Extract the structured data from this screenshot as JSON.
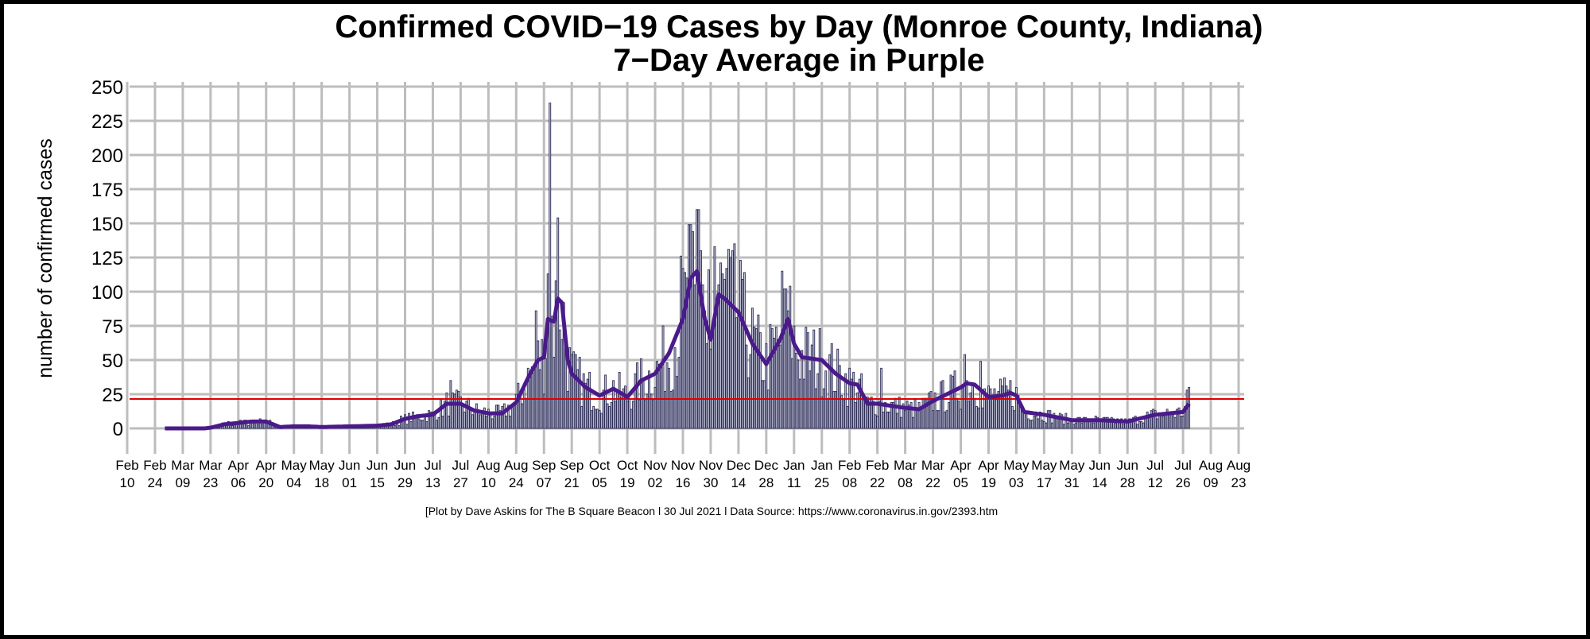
{
  "chart_data": {
    "type": "bar",
    "title": "Confirmed COVID−19 Cases by Day (Monroe County, Indiana)",
    "subtitle": "7−Day Average in Purple",
    "xlabel": "",
    "ylabel": "number of confirmed cases",
    "footer": "[Plot by Dave Askins for The B Square Beacon l 30 Jul 2021 l Data Source: https://www.coronavirus.in.gov/2393.htm",
    "ylim": [
      0,
      250
    ],
    "yticks": [
      0,
      25,
      50,
      75,
      100,
      125,
      150,
      175,
      200,
      225,
      250
    ],
    "xlim": [
      "2020-02-10",
      "2021-08-23"
    ],
    "xticks": [
      [
        "Feb",
        "10"
      ],
      [
        "Feb",
        "24"
      ],
      [
        "Mar",
        "09"
      ],
      [
        "Mar",
        "23"
      ],
      [
        "Apr",
        "06"
      ],
      [
        "Apr",
        "20"
      ],
      [
        "May",
        "04"
      ],
      [
        "May",
        "18"
      ],
      [
        "Jun",
        "01"
      ],
      [
        "Jun",
        "15"
      ],
      [
        "Jun",
        "29"
      ],
      [
        "Jul",
        "13"
      ],
      [
        "Jul",
        "27"
      ],
      [
        "Aug",
        "10"
      ],
      [
        "Aug",
        "24"
      ],
      [
        "Sep",
        "07"
      ],
      [
        "Sep",
        "21"
      ],
      [
        "Oct",
        "05"
      ],
      [
        "Oct",
        "19"
      ],
      [
        "Nov",
        "02"
      ],
      [
        "Nov",
        "16"
      ],
      [
        "Nov",
        "30"
      ],
      [
        "Dec",
        "14"
      ],
      [
        "Dec",
        "28"
      ],
      [
        "Jan",
        "11"
      ],
      [
        "Jan",
        "25"
      ],
      [
        "Feb",
        "08"
      ],
      [
        "Feb",
        "22"
      ],
      [
        "Mar",
        "08"
      ],
      [
        "Mar",
        "22"
      ],
      [
        "Apr",
        "05"
      ],
      [
        "Apr",
        "19"
      ],
      [
        "May",
        "03"
      ],
      [
        "May",
        "17"
      ],
      [
        "May",
        "31"
      ],
      [
        "Jun",
        "14"
      ],
      [
        "Jun",
        "28"
      ],
      [
        "Jul",
        "12"
      ],
      [
        "Jul",
        "26"
      ],
      [
        "Aug",
        "09"
      ],
      [
        "Aug",
        "23"
      ]
    ],
    "grid": true,
    "data_range": [
      "2020-02-29",
      "2021-07-29"
    ],
    "reference_line": {
      "value": 21.5,
      "color": "#e00000"
    },
    "colors": {
      "bar_fill": "#c8c8dc",
      "bar_stroke": "#2c2c55",
      "average_line": "#4a1a8a",
      "grid": "#bdbdbd"
    },
    "seven_day_average": [
      [
        "2020-02-29",
        0
      ],
      [
        "2020-03-09",
        0
      ],
      [
        "2020-03-20",
        0
      ],
      [
        "2020-03-23",
        0.5
      ],
      [
        "2020-03-30",
        3
      ],
      [
        "2020-04-06",
        4
      ],
      [
        "2020-04-13",
        5
      ],
      [
        "2020-04-20",
        5
      ],
      [
        "2020-04-27",
        1
      ],
      [
        "2020-05-04",
        1.5
      ],
      [
        "2020-05-11",
        1.5
      ],
      [
        "2020-05-18",
        1
      ],
      [
        "2020-06-01",
        1.5
      ],
      [
        "2020-06-15",
        2
      ],
      [
        "2020-06-22",
        3
      ],
      [
        "2020-06-29",
        7
      ],
      [
        "2020-07-06",
        9
      ],
      [
        "2020-07-13",
        10
      ],
      [
        "2020-07-20",
        18
      ],
      [
        "2020-07-27",
        18
      ],
      [
        "2020-08-03",
        13
      ],
      [
        "2020-08-10",
        11
      ],
      [
        "2020-08-17",
        11
      ],
      [
        "2020-08-24",
        19
      ],
      [
        "2020-08-31",
        40
      ],
      [
        "2020-09-04",
        50
      ],
      [
        "2020-09-07",
        52
      ],
      [
        "2020-09-09",
        80
      ],
      [
        "2020-09-12",
        78
      ],
      [
        "2020-09-14",
        95
      ],
      [
        "2020-09-16",
        92
      ],
      [
        "2020-09-19",
        50
      ],
      [
        "2020-09-21",
        40
      ],
      [
        "2020-09-28",
        30
      ],
      [
        "2020-10-05",
        24
      ],
      [
        "2020-10-12",
        29
      ],
      [
        "2020-10-19",
        23
      ],
      [
        "2020-10-26",
        35
      ],
      [
        "2020-11-02",
        40
      ],
      [
        "2020-11-09",
        55
      ],
      [
        "2020-11-16",
        80
      ],
      [
        "2020-11-20",
        110
      ],
      [
        "2020-11-23",
        115
      ],
      [
        "2020-11-27",
        80
      ],
      [
        "2020-11-30",
        65
      ],
      [
        "2020-12-04",
        98
      ],
      [
        "2020-12-07",
        95
      ],
      [
        "2020-12-14",
        85
      ],
      [
        "2020-12-21",
        62
      ],
      [
        "2020-12-28",
        47
      ],
      [
        "2021-01-04",
        65
      ],
      [
        "2021-01-08",
        80
      ],
      [
        "2021-01-11",
        62
      ],
      [
        "2021-01-15",
        52
      ],
      [
        "2021-01-25",
        50
      ],
      [
        "2021-02-01",
        40
      ],
      [
        "2021-02-08",
        33
      ],
      [
        "2021-02-12",
        32
      ],
      [
        "2021-02-17",
        18
      ],
      [
        "2021-02-22",
        18
      ],
      [
        "2021-03-08",
        15
      ],
      [
        "2021-03-15",
        14
      ],
      [
        "2021-03-22",
        20
      ],
      [
        "2021-04-05",
        30
      ],
      [
        "2021-04-08",
        33
      ],
      [
        "2021-04-12",
        32
      ],
      [
        "2021-04-19",
        23
      ],
      [
        "2021-04-26",
        24
      ],
      [
        "2021-04-30",
        26
      ],
      [
        "2021-05-03",
        24
      ],
      [
        "2021-05-07",
        12
      ],
      [
        "2021-05-17",
        10
      ],
      [
        "2021-05-31",
        6
      ],
      [
        "2021-06-14",
        6
      ],
      [
        "2021-06-28",
        5
      ],
      [
        "2021-07-12",
        10
      ],
      [
        "2021-07-26",
        12
      ],
      [
        "2021-07-29",
        18
      ]
    ],
    "daily_peaks": [
      [
        "2020-07-22",
        35
      ],
      [
        "2020-09-10",
        238
      ],
      [
        "2020-09-09",
        113
      ],
      [
        "2020-09-14",
        154
      ],
      [
        "2020-09-03",
        86
      ],
      [
        "2020-11-15",
        126
      ],
      [
        "2020-11-18",
        110
      ],
      [
        "2020-11-19",
        149
      ],
      [
        "2020-11-20",
        149
      ],
      [
        "2020-11-29",
        116
      ],
      [
        "2020-12-02",
        133
      ],
      [
        "2020-12-11",
        130
      ],
      [
        "2020-12-16",
        109
      ],
      [
        "2021-01-05",
        115
      ],
      [
        "2021-01-07",
        102
      ],
      [
        "2021-02-24",
        44
      ],
      [
        "2021-04-07",
        54
      ],
      [
        "2021-04-15",
        49
      ],
      [
        "2021-07-28",
        28
      ],
      [
        "2021-07-29",
        30
      ]
    ]
  }
}
